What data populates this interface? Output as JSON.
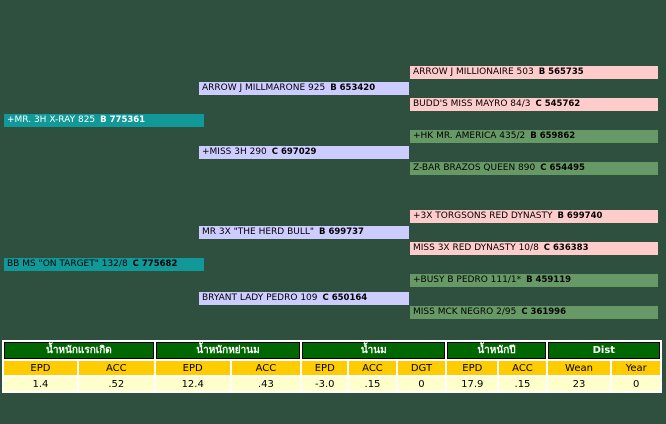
{
  "pedigree": [
    {
      "name": "ARROW J MILLIONAIRE 503",
      "reg": "B 565735"
    },
    {
      "name": "ARROW J MILLMARONE 925",
      "reg": "B 653420"
    },
    {
      "name": "BUDD'S MISS MAYRO 84/3",
      "reg": "C 545762"
    },
    {
      "name": "+MR. 3H X-RAY 825",
      "reg": "B 775361"
    },
    {
      "name": "+HK MR. AMERICA 435/2",
      "reg": "B 659862"
    },
    {
      "name": "+MISS 3H 290",
      "reg": "C 697029"
    },
    {
      "name": "Z-BAR BRAZOS QUEEN 890",
      "reg": "C 654495"
    },
    {
      "name": "+3X TORGSONS RED DYNASTY",
      "reg": "B 699740"
    },
    {
      "name": "MR 3X \"THE HERD BULL\"",
      "reg": "B 699737"
    },
    {
      "name": "MISS 3X RED DYNASTY 10/8",
      "reg": "C 636383"
    },
    {
      "name": "BB MS \"ON TARGET\" 132/8",
      "reg": "C 775682"
    },
    {
      "name": "+BUSY B PEDRO 111/1*",
      "reg": "B 459119"
    },
    {
      "name": "BRYANT LADY PEDRO 109",
      "reg": "C 650164"
    },
    {
      "name": "MISS MCK NEGRO 2/95",
      "reg": "C 361996"
    }
  ],
  "table": {
    "groups": [
      {
        "label": "น้ำหนักแรกเกิด",
        "columns": [
          "EPD",
          "ACC"
        ]
      },
      {
        "label": "น้ำหนักหย่านม",
        "columns": [
          "EPD",
          "ACC"
        ]
      },
      {
        "label": "น้ำนม",
        "columns": [
          "EPD",
          "ACC",
          "DGT"
        ]
      },
      {
        "label": "น้ำหนักปี",
        "columns": [
          "EPD",
          "ACC"
        ]
      },
      {
        "label": "Dist",
        "columns": [
          "Wean",
          "Year"
        ]
      }
    ],
    "values": [
      "1.4",
      ".52",
      "12.4",
      ".43",
      "-3.0",
      ".15",
      "0",
      "17.9",
      ".15",
      "23",
      "0"
    ]
  }
}
